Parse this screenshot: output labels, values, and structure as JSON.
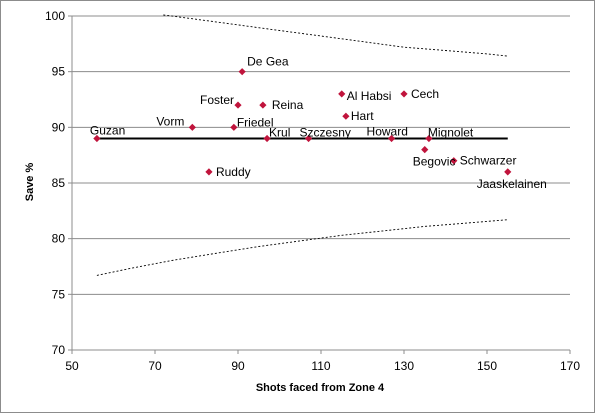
{
  "chart_data": {
    "type": "scatter",
    "title": "",
    "xlabel": "Shots faced from Zone 4",
    "ylabel": "Save %",
    "xlim": [
      50,
      170
    ],
    "ylim": [
      70,
      100
    ],
    "x_ticks": [
      50,
      70,
      90,
      110,
      130,
      150,
      170
    ],
    "y_ticks": [
      70,
      75,
      80,
      85,
      90,
      95,
      100
    ],
    "grid": "horizontal",
    "legend": "none",
    "marker_color": "#c0143c",
    "points": [
      {
        "label": "Guzan",
        "x": 56,
        "y": 89.0
      },
      {
        "label": "Vorm",
        "x": 79,
        "y": 90.0
      },
      {
        "label": "Ruddy",
        "x": 83,
        "y": 86.0
      },
      {
        "label": "Friedel",
        "x": 89,
        "y": 90.0
      },
      {
        "label": "Foster",
        "x": 90,
        "y": 92.0
      },
      {
        "label": "De Gea",
        "x": 91,
        "y": 95.0
      },
      {
        "label": "Reina",
        "x": 96,
        "y": 92.0
      },
      {
        "label": "Krul",
        "x": 97,
        "y": 89.0
      },
      {
        "label": "Szczesny",
        "x": 107,
        "y": 89.0
      },
      {
        "label": "Al Habsi",
        "x": 115,
        "y": 93.0
      },
      {
        "label": "Hart",
        "x": 116,
        "y": 91.0
      },
      {
        "label": "Howard",
        "x": 127,
        "y": 89.0
      },
      {
        "label": "Cech",
        "x": 130,
        "y": 93.0
      },
      {
        "label": "Begovic",
        "x": 135,
        "y": 88.0
      },
      {
        "label": "Mignolet",
        "x": 136,
        "y": 89.0
      },
      {
        "label": "Schwarzer",
        "x": 142,
        "y": 87.0
      },
      {
        "label": "Jaaskelainen",
        "x": 155,
        "y": 86.0
      }
    ],
    "mean_line": {
      "y": 89.0,
      "x_range": [
        56,
        155
      ]
    },
    "upper_bound": [
      [
        72,
        100.1
      ],
      [
        80,
        99.7
      ],
      [
        90,
        99.2
      ],
      [
        100,
        98.7
      ],
      [
        110,
        98.2
      ],
      [
        120,
        97.7
      ],
      [
        130,
        97.2
      ],
      [
        140,
        96.9
      ],
      [
        150,
        96.6
      ],
      [
        155,
        96.4
      ]
    ],
    "lower_bound": [
      [
        56,
        76.7
      ],
      [
        65,
        77.4
      ],
      [
        75,
        78.1
      ],
      [
        85,
        78.7
      ],
      [
        95,
        79.3
      ],
      [
        105,
        79.8
      ],
      [
        115,
        80.3
      ],
      [
        125,
        80.7
      ],
      [
        135,
        81.1
      ],
      [
        145,
        81.4
      ],
      [
        155,
        81.7
      ]
    ]
  }
}
